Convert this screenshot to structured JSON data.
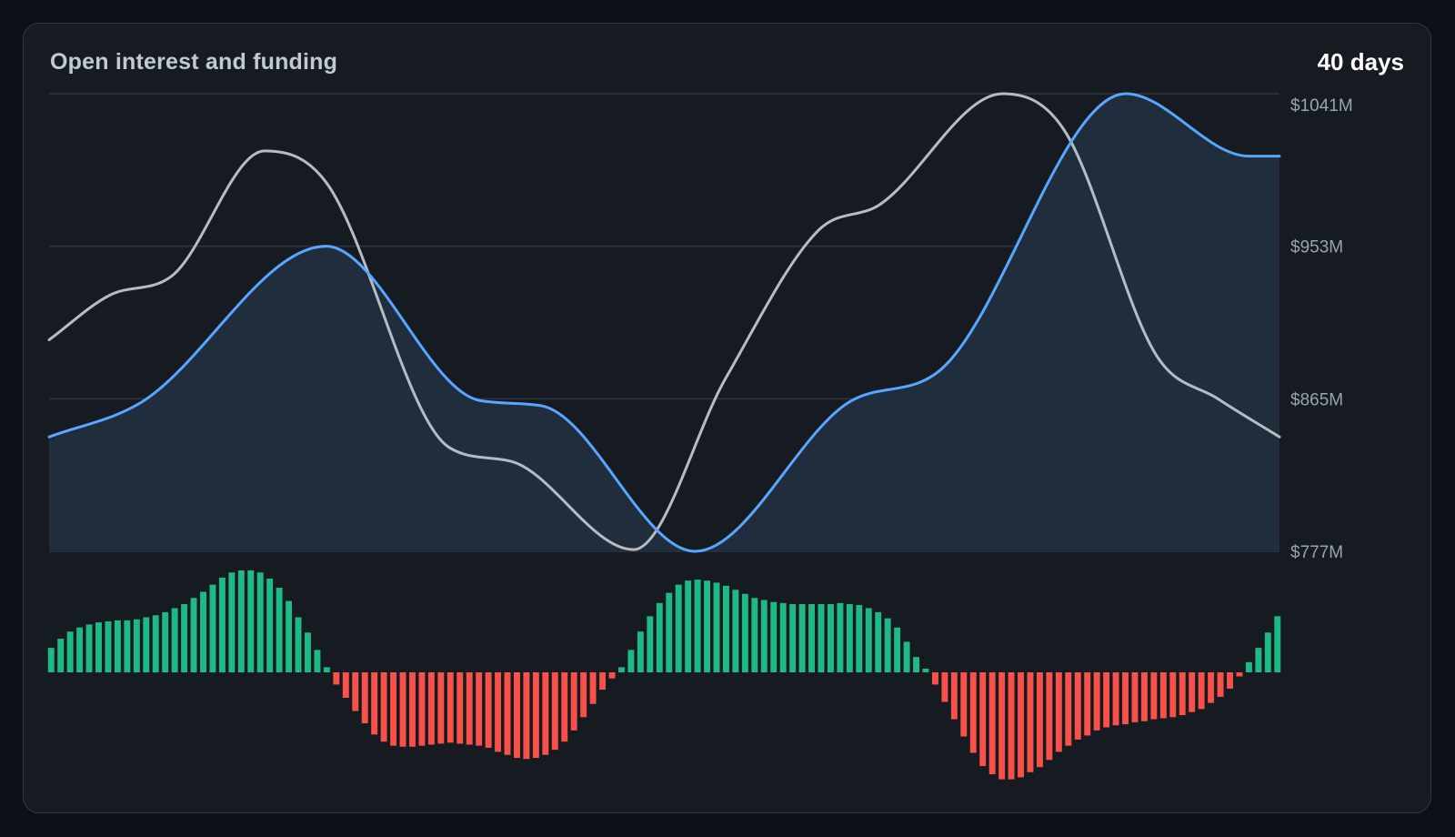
{
  "card": {
    "title": "Open interest and funding",
    "range_label": "40 days"
  },
  "colors": {
    "open_interest": "#58a6ff",
    "open_interest_fill": "#1f2d3d",
    "price": "#b8bcc2",
    "funding_positive": "#1fb985",
    "funding_negative": "#f85149",
    "grid": "#30363d"
  },
  "chart_data": [
    {
      "type": "line",
      "title": "Open interest and funding",
      "x": [
        0,
        40
      ],
      "ylim": [
        777,
        1041
      ],
      "yticks": [
        1041,
        953,
        865,
        777
      ],
      "ytick_labels": [
        "$1041M",
        "$953M",
        "$865M",
        "$777M"
      ],
      "grid": true,
      "series": [
        {
          "style": "area",
          "color": "#58a6ff",
          "points": [
            [
              0,
              843
            ],
            [
              3,
              863
            ],
            [
              9,
              953
            ],
            [
              14,
              864
            ],
            [
              16,
              861
            ],
            [
              21,
              777
            ],
            [
              26,
              863
            ],
            [
              29,
              882
            ],
            [
              35,
              1041
            ],
            [
              39,
              1005
            ],
            [
              40,
              1005
            ]
          ]
        },
        {
          "style": "line",
          "color": "#b8bcc2",
          "points": [
            [
              0,
              899
            ],
            [
              2,
              925
            ],
            [
              4,
              936
            ],
            [
              7,
              1008
            ],
            [
              9,
              990
            ],
            [
              13,
              837
            ],
            [
              15,
              829
            ],
            [
              19,
              778
            ],
            [
              22,
              877
            ],
            [
              25,
              962
            ],
            [
              27,
              977
            ],
            [
              31,
              1041
            ],
            [
              33,
              1020
            ],
            [
              36,
              890
            ],
            [
              38,
              865
            ],
            [
              40,
              843
            ]
          ]
        }
      ]
    },
    {
      "type": "bar",
      "series": [
        {
          "values": [
            0.24,
            0.33,
            0.4,
            0.44,
            0.47,
            0.49,
            0.5,
            0.51,
            0.51,
            0.52,
            0.54,
            0.56,
            0.59,
            0.63,
            0.67,
            0.73,
            0.79,
            0.86,
            0.93,
            0.98,
            1.0,
            1.0,
            0.98,
            0.92,
            0.83,
            0.7,
            0.54,
            0.39,
            0.22,
            0.05,
            -0.12,
            -0.25,
            -0.38,
            -0.5,
            -0.61,
            -0.68,
            -0.72,
            -0.73,
            -0.73,
            -0.72,
            -0.71,
            -0.7,
            -0.69,
            -0.7,
            -0.71,
            -0.72,
            -0.74,
            -0.78,
            -0.81,
            -0.84,
            -0.85,
            -0.84,
            -0.81,
            -0.76,
            -0.68,
            -0.57,
            -0.44,
            -0.31,
            -0.17,
            -0.06,
            0.05,
            0.22,
            0.4,
            0.55,
            0.68,
            0.78,
            0.86,
            0.9,
            0.91,
            0.9,
            0.88,
            0.85,
            0.81,
            0.77,
            0.73,
            0.71,
            0.69,
            0.68,
            0.67,
            0.67,
            0.67,
            0.67,
            0.67,
            0.68,
            0.67,
            0.66,
            0.63,
            0.59,
            0.53,
            0.44,
            0.3,
            0.15,
            0.02,
            -0.12,
            -0.29,
            -0.46,
            -0.63,
            -0.79,
            -0.92,
            -1.0,
            -1.05,
            -1.05,
            -1.03,
            -0.98,
            -0.93,
            -0.86,
            -0.78,
            -0.72,
            -0.66,
            -0.62,
            -0.57,
            -0.54,
            -0.52,
            -0.51,
            -0.49,
            -0.48,
            -0.46,
            -0.45,
            -0.44,
            -0.42,
            -0.39,
            -0.36,
            -0.3,
            -0.24,
            -0.16,
            -0.04,
            0.1,
            0.24,
            0.39,
            0.55
          ]
        }
      ]
    }
  ]
}
